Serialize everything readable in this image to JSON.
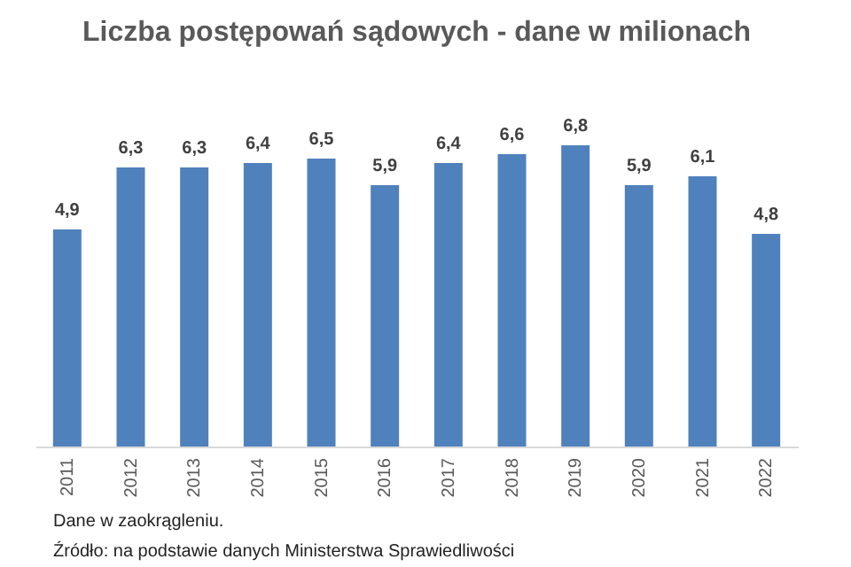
{
  "chart_data": {
    "type": "bar",
    "title": "Liczba postępowań sądowych - dane w milionach",
    "categories": [
      "2011",
      "2012",
      "2013",
      "2014",
      "2015",
      "2016",
      "2017",
      "2018",
      "2019",
      "2020",
      "2021",
      "2022"
    ],
    "values": [
      4.9,
      6.3,
      6.3,
      6.4,
      6.5,
      5.9,
      6.4,
      6.6,
      6.8,
      5.9,
      6.1,
      4.8
    ],
    "value_labels": [
      "4,9",
      "6,3",
      "6,3",
      "6,4",
      "6,5",
      "5,9",
      "6,4",
      "6,6",
      "6,8",
      "5,9",
      "6,1",
      "4,8"
    ],
    "color": "#4f81bd",
    "annotations": [
      "Dane w zaokrągleniu.",
      "Źródło: na podstawie danych Ministerstwa Sprawiedliwości"
    ]
  }
}
